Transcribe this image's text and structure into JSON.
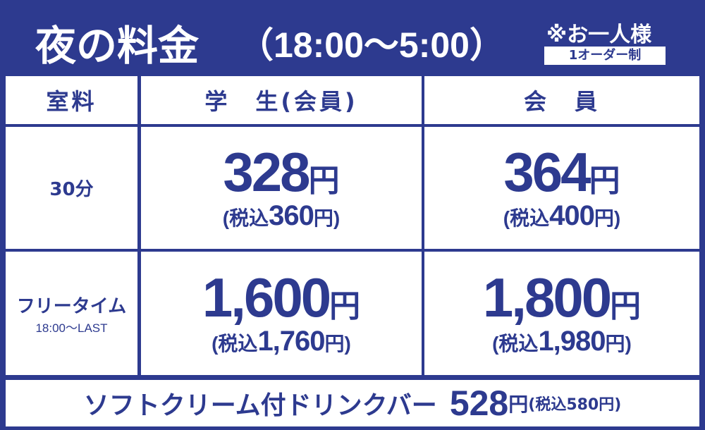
{
  "header": {
    "title": "夜の料金",
    "hours": "（18:00～5:00）",
    "note": "※お一人様",
    "badge": "1オーダー制"
  },
  "table": {
    "columns": [
      "室料",
      "学　生(会員)",
      "会　員"
    ],
    "rows": [
      {
        "label": "30分",
        "sublabel": null,
        "prices": [
          {
            "amount": "328",
            "unit": "円",
            "tax": "(税込",
            "tax_amount": "360",
            "tax_unit": "円)"
          },
          {
            "amount": "364",
            "unit": "円",
            "tax": "(税込",
            "tax_amount": "400",
            "tax_unit": "円)"
          }
        ]
      },
      {
        "label": "フリータイム",
        "sublabel": "18:00～LAST",
        "prices": [
          {
            "amount": "1,600",
            "unit": "円",
            "tax": "(税込",
            "tax_amount": "1,760",
            "tax_unit": "円)"
          },
          {
            "amount": "1,800",
            "unit": "円",
            "tax": "(税込",
            "tax_amount": "1,980",
            "tax_unit": "円)"
          }
        ]
      }
    ]
  },
  "footer": {
    "item": "ソフトクリーム付ドリンクバー",
    "amount": "528",
    "unit": "円",
    "tax": "(税込580円)"
  }
}
